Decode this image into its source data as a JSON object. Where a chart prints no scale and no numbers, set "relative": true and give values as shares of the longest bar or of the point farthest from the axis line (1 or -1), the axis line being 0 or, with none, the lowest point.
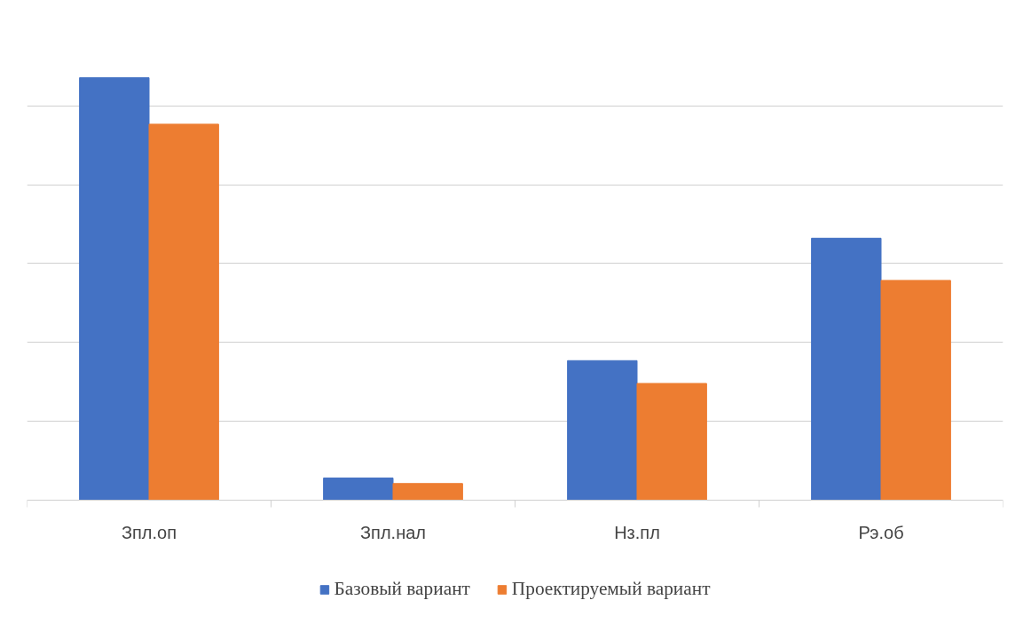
{
  "chart_data": {
    "type": "bar",
    "relative": true,
    "grid": "y",
    "legend": "bottom",
    "categories": [
      "Зпл.оп",
      "Зпл.нал",
      "Нз.пл",
      "Рэ.об"
    ],
    "series": [
      {
        "name": "Базовый вариант",
        "color": "#4472c4",
        "values": [
          1,
          0.052,
          0.33,
          0.62
        ]
      },
      {
        "name": "Проектируемый вариант",
        "color": "#ed7d31",
        "values": [
          0.89,
          0.039,
          0.276,
          0.52
        ]
      }
    ]
  }
}
